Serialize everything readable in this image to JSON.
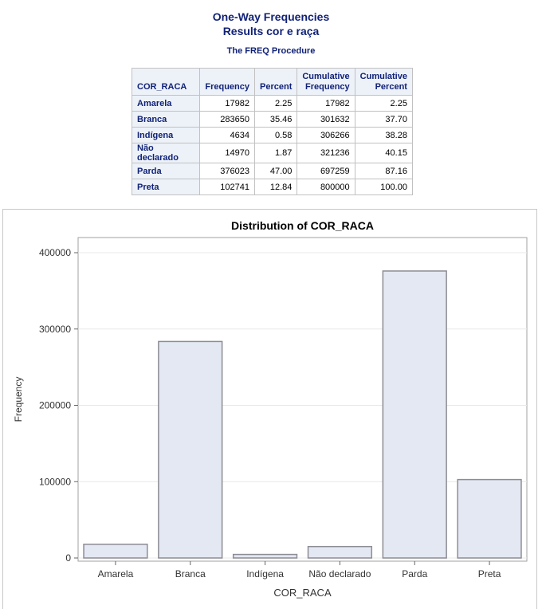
{
  "header": {
    "title1": "One-Way Frequencies",
    "title2": "Results cor e raça",
    "procedure": "The FREQ Procedure"
  },
  "table": {
    "columns": [
      "COR_RACA",
      "Frequency",
      "Percent",
      "Cumulative\nFrequency",
      "Cumulative\nPercent"
    ],
    "rows": [
      {
        "label": "Amarela",
        "frequency": "17982",
        "percent": "2.25",
        "cum_frequency": "17982",
        "cum_percent": "2.25"
      },
      {
        "label": "Branca",
        "frequency": "283650",
        "percent": "35.46",
        "cum_frequency": "301632",
        "cum_percent": "37.70"
      },
      {
        "label": "Indígena",
        "frequency": "4634",
        "percent": "0.58",
        "cum_frequency": "306266",
        "cum_percent": "38.28"
      },
      {
        "label": "Não declarado",
        "frequency": "14970",
        "percent": "1.87",
        "cum_frequency": "321236",
        "cum_percent": "40.15"
      },
      {
        "label": "Parda",
        "frequency": "376023",
        "percent": "47.00",
        "cum_frequency": "697259",
        "cum_percent": "87.16"
      },
      {
        "label": "Preta",
        "frequency": "102741",
        "percent": "12.84",
        "cum_frequency": "800000",
        "cum_percent": "100.00"
      }
    ]
  },
  "colors": {
    "heading": "#112277",
    "header_bg": "#edf2f9",
    "bar_fill": "#e4e8f2",
    "bar_stroke": "#8c8c94",
    "grid": "#e8e8e8"
  },
  "chart_data": {
    "type": "bar",
    "title": "Distribution of COR_RACA",
    "xlabel": "COR_RACA",
    "ylabel": "Frequency",
    "categories": [
      "Amarela",
      "Branca",
      "Indígena",
      "Não declarado",
      "Parda",
      "Preta"
    ],
    "values": [
      17982,
      283650,
      4634,
      14970,
      376023,
      102741
    ],
    "ylim": [
      0,
      400000
    ],
    "yticks": [
      0,
      100000,
      200000,
      300000,
      400000
    ],
    "grid": true,
    "legend": "none"
  }
}
